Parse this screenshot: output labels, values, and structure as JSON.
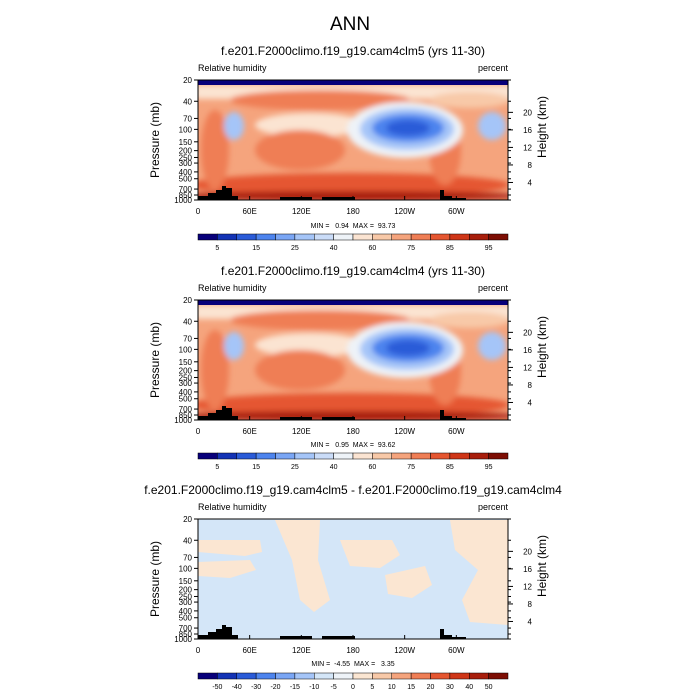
{
  "title": "ANN",
  "chart_data": [
    {
      "type": "heatmap",
      "title": "f.e201.F2000climo.f19_g19.cam4clm5 (yrs 11-30)",
      "variable": "Relative humidity",
      "units": "percent",
      "ylabel": "Pressure (mb)",
      "ylabel_right": "Height (km)",
      "xlim": [
        0,
        360
      ],
      "x_ticks": [
        "0",
        "60E",
        "120E",
        "180",
        "120W",
        "60W"
      ],
      "y_ticks": [
        "20",
        "40",
        "70",
        "100",
        "150",
        "200",
        "250",
        "300",
        "400",
        "500",
        "700",
        "850",
        "1000"
      ],
      "y_ticks_right": [
        "20",
        "16",
        "12",
        "8",
        "4"
      ],
      "min": 0.94,
      "max": 93.73,
      "stats_label": "MIN =   0.94  MAX =  93.73",
      "colorbar_levels": [
        5,
        10,
        15,
        20,
        25,
        30,
        40,
        50,
        60,
        70,
        75,
        80,
        85,
        90,
        95
      ],
      "colorbar_tick_labels": [
        "5",
        "15",
        "25",
        "40",
        "60",
        "75",
        "85",
        "95"
      ],
      "colorbar_colors": [
        "#08007a",
        "#1333b5",
        "#2a5bd8",
        "#4d84ee",
        "#7aa6f5",
        "#a5c5f8",
        "#cadcf8",
        "#eef3f8",
        "#fbe4d2",
        "#f8c9a8",
        "#f5a47d",
        "#ef7e55",
        "#e55630",
        "#cf3618",
        "#a81e0c",
        "#7d0e04"
      ]
    },
    {
      "type": "heatmap",
      "title": "f.e201.F2000climo.f19_g19.cam4clm4 (yrs 11-30)",
      "variable": "Relative humidity",
      "units": "percent",
      "ylabel": "Pressure (mb)",
      "ylabel_right": "Height (km)",
      "xlim": [
        0,
        360
      ],
      "x_ticks": [
        "0",
        "60E",
        "120E",
        "180",
        "120W",
        "60W"
      ],
      "y_ticks": [
        "20",
        "40",
        "70",
        "100",
        "150",
        "200",
        "250",
        "300",
        "400",
        "500",
        "700",
        "850",
        "1000"
      ],
      "y_ticks_right": [
        "20",
        "16",
        "12",
        "8",
        "4"
      ],
      "min": 0.95,
      "max": 93.62,
      "stats_label": "MIN =   0.95  MAX =  93.62",
      "colorbar_levels": [
        5,
        10,
        15,
        20,
        25,
        30,
        40,
        50,
        60,
        70,
        75,
        80,
        85,
        90,
        95
      ],
      "colorbar_tick_labels": [
        "5",
        "15",
        "25",
        "40",
        "60",
        "75",
        "85",
        "95"
      ],
      "colorbar_colors": [
        "#08007a",
        "#1333b5",
        "#2a5bd8",
        "#4d84ee",
        "#7aa6f5",
        "#a5c5f8",
        "#cadcf8",
        "#eef3f8",
        "#fbe4d2",
        "#f8c9a8",
        "#f5a47d",
        "#ef7e55",
        "#e55630",
        "#cf3618",
        "#a81e0c",
        "#7d0e04"
      ]
    },
    {
      "type": "heatmap",
      "title": "f.e201.F2000climo.f19_g19.cam4clm5 - f.e201.F2000climo.f19_g19.cam4clm4",
      "variable": "Relative humidity",
      "units": "percent",
      "ylabel": "Pressure (mb)",
      "ylabel_right": "Height (km)",
      "xlim": [
        0,
        360
      ],
      "x_ticks": [
        "0",
        "60E",
        "120E",
        "180",
        "120W",
        "60W"
      ],
      "y_ticks": [
        "20",
        "40",
        "70",
        "100",
        "150",
        "200",
        "250",
        "300",
        "400",
        "500",
        "700",
        "850",
        "1000"
      ],
      "y_ticks_right": [
        "20",
        "16",
        "12",
        "8",
        "4"
      ],
      "min": -4.55,
      "max": 3.35,
      "stats_label": "MIN =  -4.55  MAX =   3.35",
      "colorbar_levels": [
        -50,
        -40,
        -30,
        -20,
        -15,
        -10,
        -5,
        0,
        5,
        10,
        15,
        20,
        30,
        40,
        50
      ],
      "colorbar_tick_labels": [
        "-50",
        "-40",
        "-30",
        "-20",
        "-15",
        "-10",
        "-5",
        "0",
        "5",
        "10",
        "15",
        "20",
        "30",
        "40",
        "50"
      ],
      "colorbar_colors": [
        "#08007a",
        "#1333b5",
        "#2a5bd8",
        "#4d84ee",
        "#7aa6f5",
        "#a5c5f8",
        "#d4e6f8",
        "#eef3f8",
        "#fbe6d2",
        "#f8c9a8",
        "#f5a47d",
        "#ef7e55",
        "#e55630",
        "#cf3618",
        "#a81e0c",
        "#7d0e04"
      ]
    }
  ]
}
